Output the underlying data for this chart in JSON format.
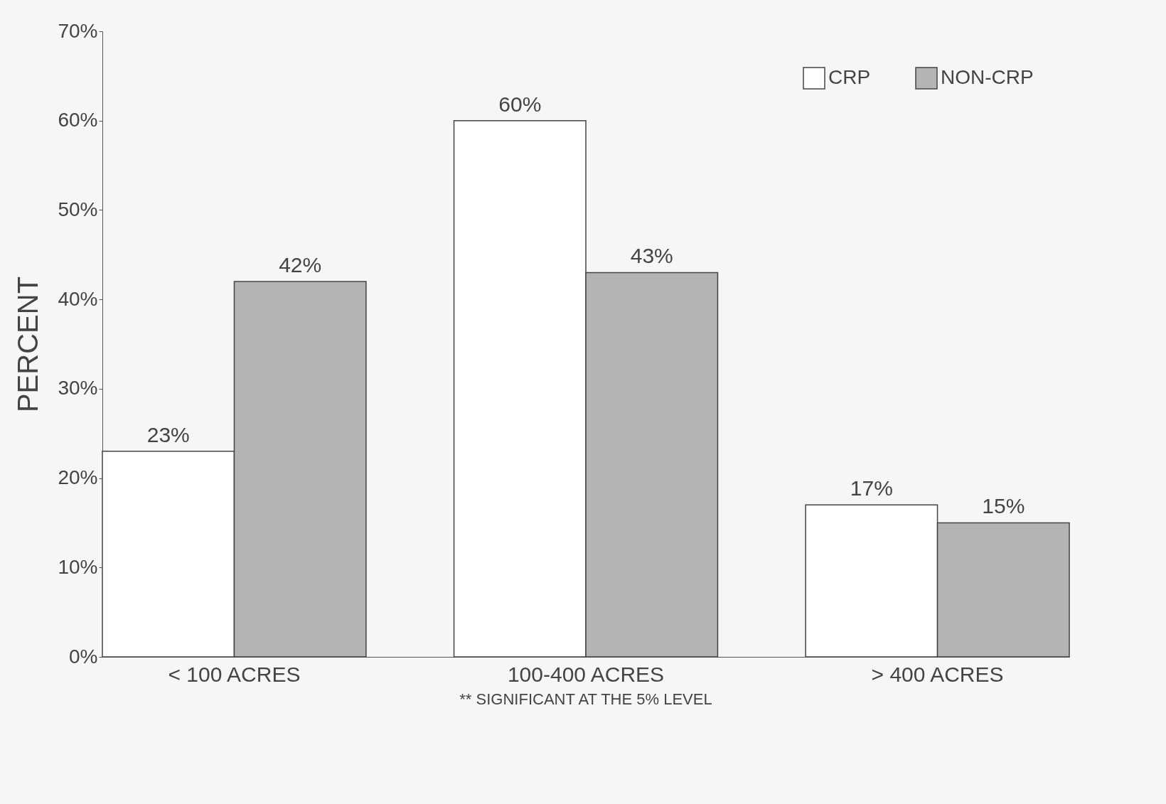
{
  "chart_data": {
    "type": "bar",
    "ylabel": "PERCENT",
    "categories": [
      "< 100 ACRES",
      "100-400 ACRES",
      "> 400 ACRES"
    ],
    "series": [
      {
        "name": "CRP",
        "color": "#ffffff",
        "values": [
          23,
          60,
          17
        ],
        "value_labels": [
          "23%",
          "60%",
          "17%"
        ]
      },
      {
        "name": "NON-CRP",
        "color": "#b4b4b4",
        "values": [
          42,
          43,
          15
        ],
        "value_labels": [
          "42%",
          "43%",
          "15%"
        ]
      }
    ],
    "ylim": [
      0,
      70
    ],
    "yticks": [
      {
        "value": 0,
        "label": "0%"
      },
      {
        "value": 10,
        "label": "10%"
      },
      {
        "value": 20,
        "label": "20%"
      },
      {
        "value": 30,
        "label": "30%"
      },
      {
        "value": 40,
        "label": "40%"
      },
      {
        "value": 50,
        "label": "50%"
      },
      {
        "value": 60,
        "label": "60%"
      },
      {
        "value": 70,
        "label": "70%"
      }
    ],
    "legend": "top right",
    "grid": false,
    "annotations": [
      "** SIGNIFICANT AT THE 5% LEVEL"
    ]
  }
}
